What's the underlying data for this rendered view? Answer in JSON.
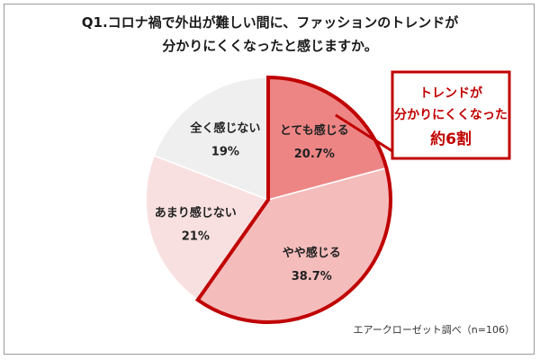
{
  "chart_data": {
    "type": "pie",
    "title_lines": [
      "Q1.コロナ禍で外出が難しい間に、ファッションのトレンドが",
      "分かりにくくなったと感じますか。"
    ],
    "slices": [
      {
        "label": "とても感じる",
        "value": 20.7,
        "value_label": "20.7%",
        "color": "#ee8585"
      },
      {
        "label": "やや感じる",
        "value": 38.7,
        "value_label": "38.7%",
        "color": "#f5bcbc"
      },
      {
        "label": "あまり感じない",
        "value": 21,
        "value_label": "21%",
        "color": "#f9e0e0"
      },
      {
        "label": "全く感じない",
        "value": 19,
        "value_label": "19%",
        "color": "#efefef"
      }
    ],
    "highlight": {
      "slices": [
        "とても感じる",
        "やや感じる"
      ],
      "outline_color": "#c00000",
      "callout_lines": [
        "トレンドが",
        "分かりにくくなった",
        "約6割"
      ]
    },
    "source": "エアークローゼット調べ（n=106）"
  }
}
